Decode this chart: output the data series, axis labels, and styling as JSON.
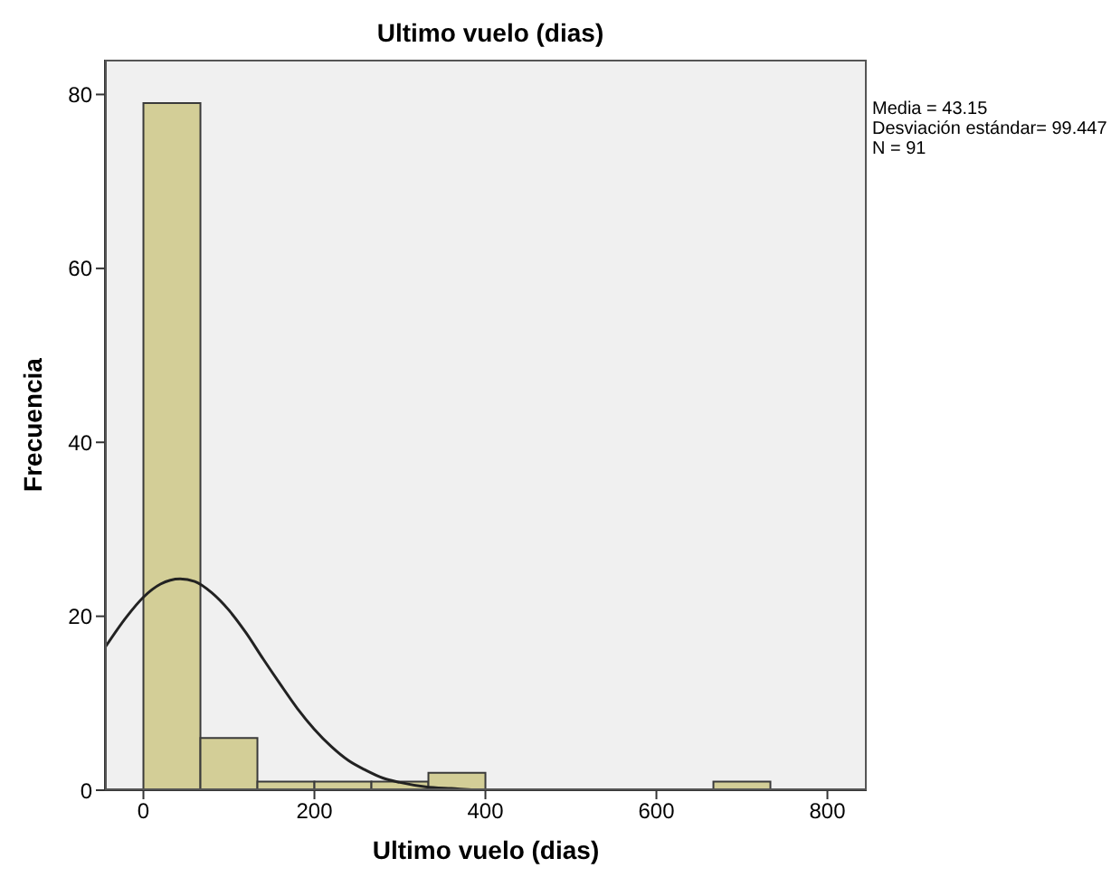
{
  "chart_data": {
    "type": "histogram",
    "title": "Ultimo vuelo (dias)",
    "xlabel": "Ultimo vuelo (dias)",
    "ylabel": "Frecuencia",
    "bins": [
      0,
      66.67,
      133.33,
      200,
      266.67,
      333.33,
      400,
      466.67,
      533.33,
      600,
      666.67,
      733.33
    ],
    "values": [
      79,
      6,
      1,
      1,
      1,
      2,
      0,
      0,
      0,
      0,
      1
    ],
    "color": "#d3ce97",
    "series": [
      {
        "type": "line",
        "color": "#222222",
        "x": [
          -45,
          -20,
          0,
          20,
          43,
          60,
          80,
          100,
          120,
          140,
          160,
          180,
          200,
          220,
          240,
          260,
          280,
          300,
          330,
          360,
          400,
          460
        ],
        "values": [
          16.4,
          19.9,
          22.2,
          23.7,
          24.3,
          24.0,
          22.7,
          20.7,
          18.1,
          15.1,
          12.2,
          9.4,
          7.0,
          5.0,
          3.4,
          2.3,
          1.4,
          0.9,
          0.4,
          0.2,
          0,
          0
        ]
      }
    ],
    "xlim": [
      -45,
      846
    ],
    "xticks": [
      0,
      200,
      400,
      600,
      800
    ],
    "ylim": [
      0,
      84
    ],
    "yticks": [
      0,
      20,
      40,
      60,
      80
    ],
    "grid": false,
    "marker": "none",
    "annotations": [
      "Media = 43.15",
      "Desviación estándar= 99.447",
      "N = 91"
    ]
  }
}
